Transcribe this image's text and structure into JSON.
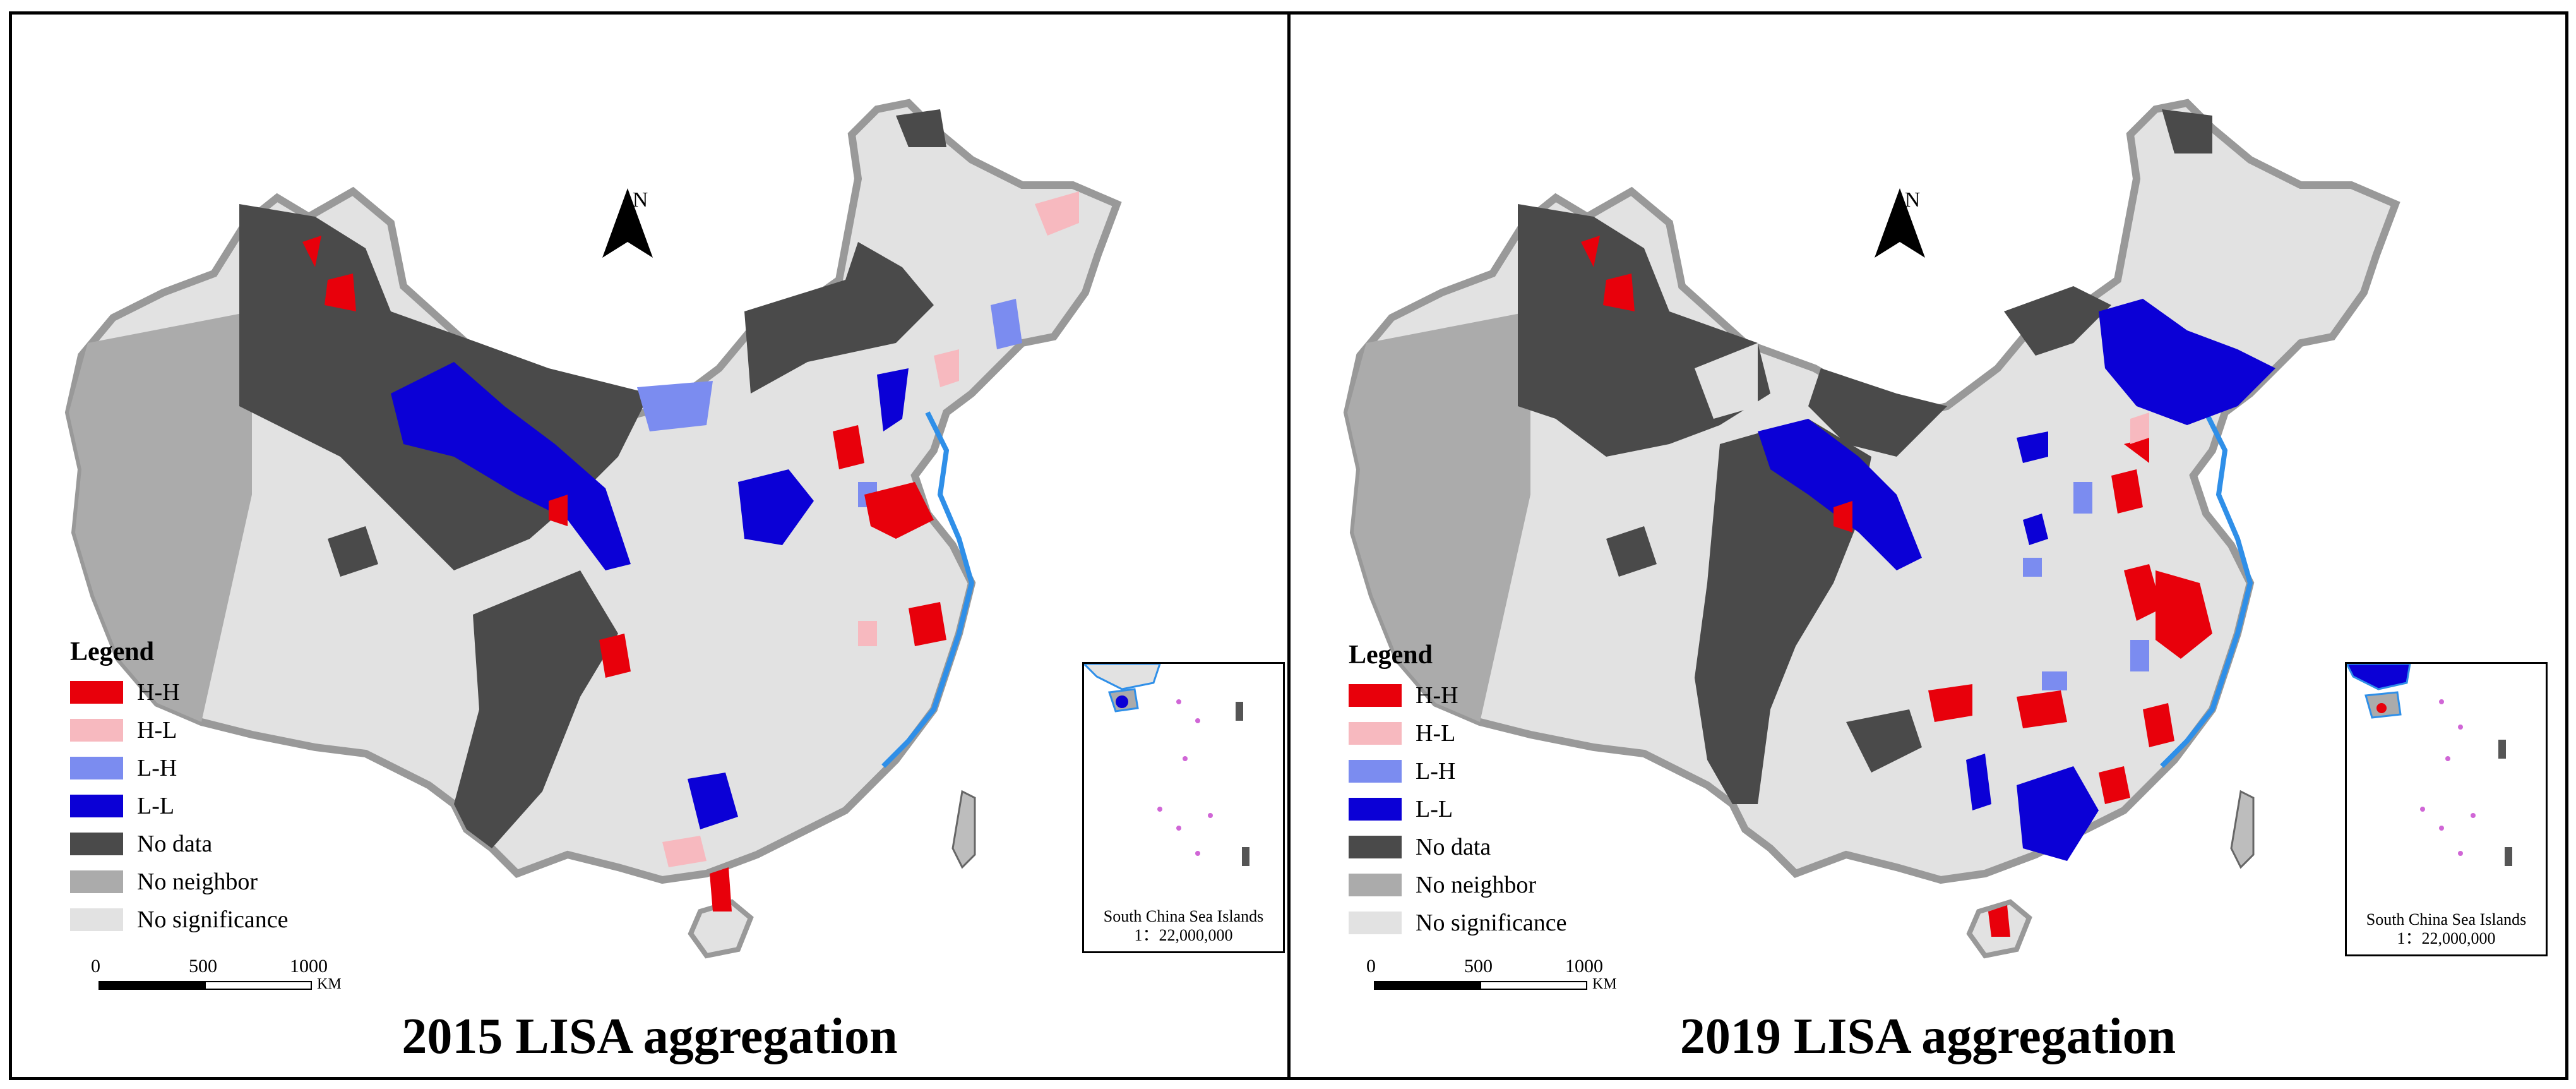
{
  "colors": {
    "hh": "#e8000b",
    "hl": "#f7b9bf",
    "lh": "#7b8cf0",
    "ll": "#0b00d6",
    "no_data": "#4a4a4a",
    "no_neighbor": "#ababab",
    "no_significance": "#e2e2e2",
    "coast": "#2f8fe8",
    "border": "#999999"
  },
  "legend": {
    "title": "Legend",
    "items": [
      {
        "label": "H-H",
        "color": "#e8000b"
      },
      {
        "label": "H-L",
        "color": "#f7b9bf"
      },
      {
        "label": "L-H",
        "color": "#7b8cf0"
      },
      {
        "label": "L-L",
        "color": "#0b00d6"
      },
      {
        "label": "No data",
        "color": "#4a4a4a"
      },
      {
        "label": "No neighbor",
        "color": "#ababab"
      },
      {
        "label": "No significance",
        "color": "#e2e2e2"
      }
    ]
  },
  "north_arrow": {
    "letter": "N"
  },
  "scale_bar": {
    "ticks": [
      "0",
      "500",
      "1000"
    ],
    "unit": "KM"
  },
  "inset": {
    "line1": "South China Sea Islands",
    "line2": "1：22,000,000"
  },
  "panels": [
    {
      "title": "2015 LISA aggregation"
    },
    {
      "title": "2019 LISA aggregation"
    }
  ]
}
